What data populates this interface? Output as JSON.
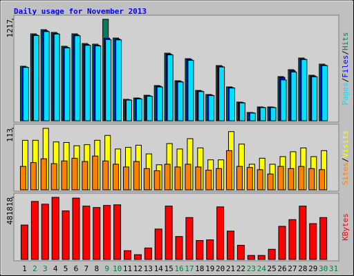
{
  "title": "Daily usage for November 2013",
  "chart_data": [
    {
      "type": "bar",
      "ylim": [
        0,
        1217
      ],
      "yticks": [
        1217
      ],
      "legend_separator": "/",
      "series": [
        {
          "name": "Hits",
          "color": "#00805c",
          "values": [
            654,
            1043,
            1093,
            1060,
            894,
            1043,
            927,
            919,
            1217,
            993,
            257,
            273,
            306,
            422,
            811,
            480,
            745,
            364,
            315,
            662,
            406,
            224,
            99,
            166,
            166,
            530,
            613,
            753,
            546,
            679,
            0
          ]
        },
        {
          "name": "Files",
          "color": "#0000ff",
          "values": [
            645,
            1030,
            1080,
            1048,
            882,
            1030,
            915,
            906,
            990,
            980,
            252,
            268,
            300,
            414,
            800,
            472,
            735,
            356,
            308,
            652,
            398,
            219,
            96,
            162,
            162,
            520,
            602,
            742,
            536,
            668,
            0
          ]
        },
        {
          "name": "Pages",
          "color": "#00e0ff",
          "values": [
            640,
            1022,
            1070,
            1040,
            875,
            1020,
            905,
            898,
            974,
            970,
            248,
            262,
            294,
            405,
            790,
            465,
            725,
            350,
            302,
            645,
            392,
            214,
            92,
            158,
            158,
            490,
            585,
            735,
            528,
            662,
            0
          ]
        }
      ]
    },
    {
      "type": "bar",
      "ylim": [
        0,
        113
      ],
      "yticks": [
        113
      ],
      "legend_separator": "/",
      "series": [
        {
          "name": "Visits",
          "color": "#ffff00",
          "values": [
            91,
            91,
            113,
            88,
            87,
            81,
            83,
            91,
            100,
            75,
            78,
            82,
            66,
            46,
            85,
            75,
            94,
            77,
            55,
            55,
            107,
            84,
            47,
            58,
            47,
            61,
            70,
            77,
            61,
            72,
            0
          ]
        },
        {
          "name": "Sites",
          "color": "#ff8000",
          "values": [
            43,
            50,
            57,
            48,
            53,
            58,
            52,
            62,
            53,
            47,
            42,
            52,
            39,
            35,
            47,
            42,
            47,
            42,
            36,
            39,
            72,
            43,
            41,
            37,
            29,
            43,
            39,
            43,
            39,
            37,
            0
          ]
        }
      ]
    },
    {
      "type": "bar",
      "ylim": [
        0,
        481818
      ],
      "yticks": [
        481818
      ],
      "categories": [
        "1",
        "2",
        "3",
        "4",
        "5",
        "6",
        "7",
        "8",
        "9",
        "10",
        "11",
        "12",
        "13",
        "14",
        "15",
        "16",
        "17",
        "18",
        "19",
        "20",
        "21",
        "22",
        "23",
        "24",
        "25",
        "26",
        "27",
        "28",
        "29",
        "30",
        "31"
      ],
      "category_colors": [
        "#000000",
        "#008040",
        "#008040",
        "#000000",
        "#000000",
        "#000000",
        "#000000",
        "#000000",
        "#008040",
        "#008040",
        "#000000",
        "#000000",
        "#000000",
        "#000000",
        "#000000",
        "#008040",
        "#008040",
        "#000000",
        "#000000",
        "#000000",
        "#000000",
        "#000000",
        "#008040",
        "#008040",
        "#000000",
        "#000000",
        "#000000",
        "#000000",
        "#000000",
        "#008040",
        "#008040"
      ],
      "series": [
        {
          "name": "KBytes",
          "color": "#ff0000",
          "values": [
            267000,
            450000,
            429000,
            481818,
            377000,
            476000,
            414000,
            403000,
            419000,
            424000,
            68000,
            37000,
            89000,
            236000,
            414000,
            178000,
            325000,
            147000,
            152000,
            408000,
            220000,
            110000,
            31000,
            31000,
            79000,
            257000,
            309000,
            414000,
            278000,
            325000,
            0
          ]
        }
      ]
    }
  ]
}
